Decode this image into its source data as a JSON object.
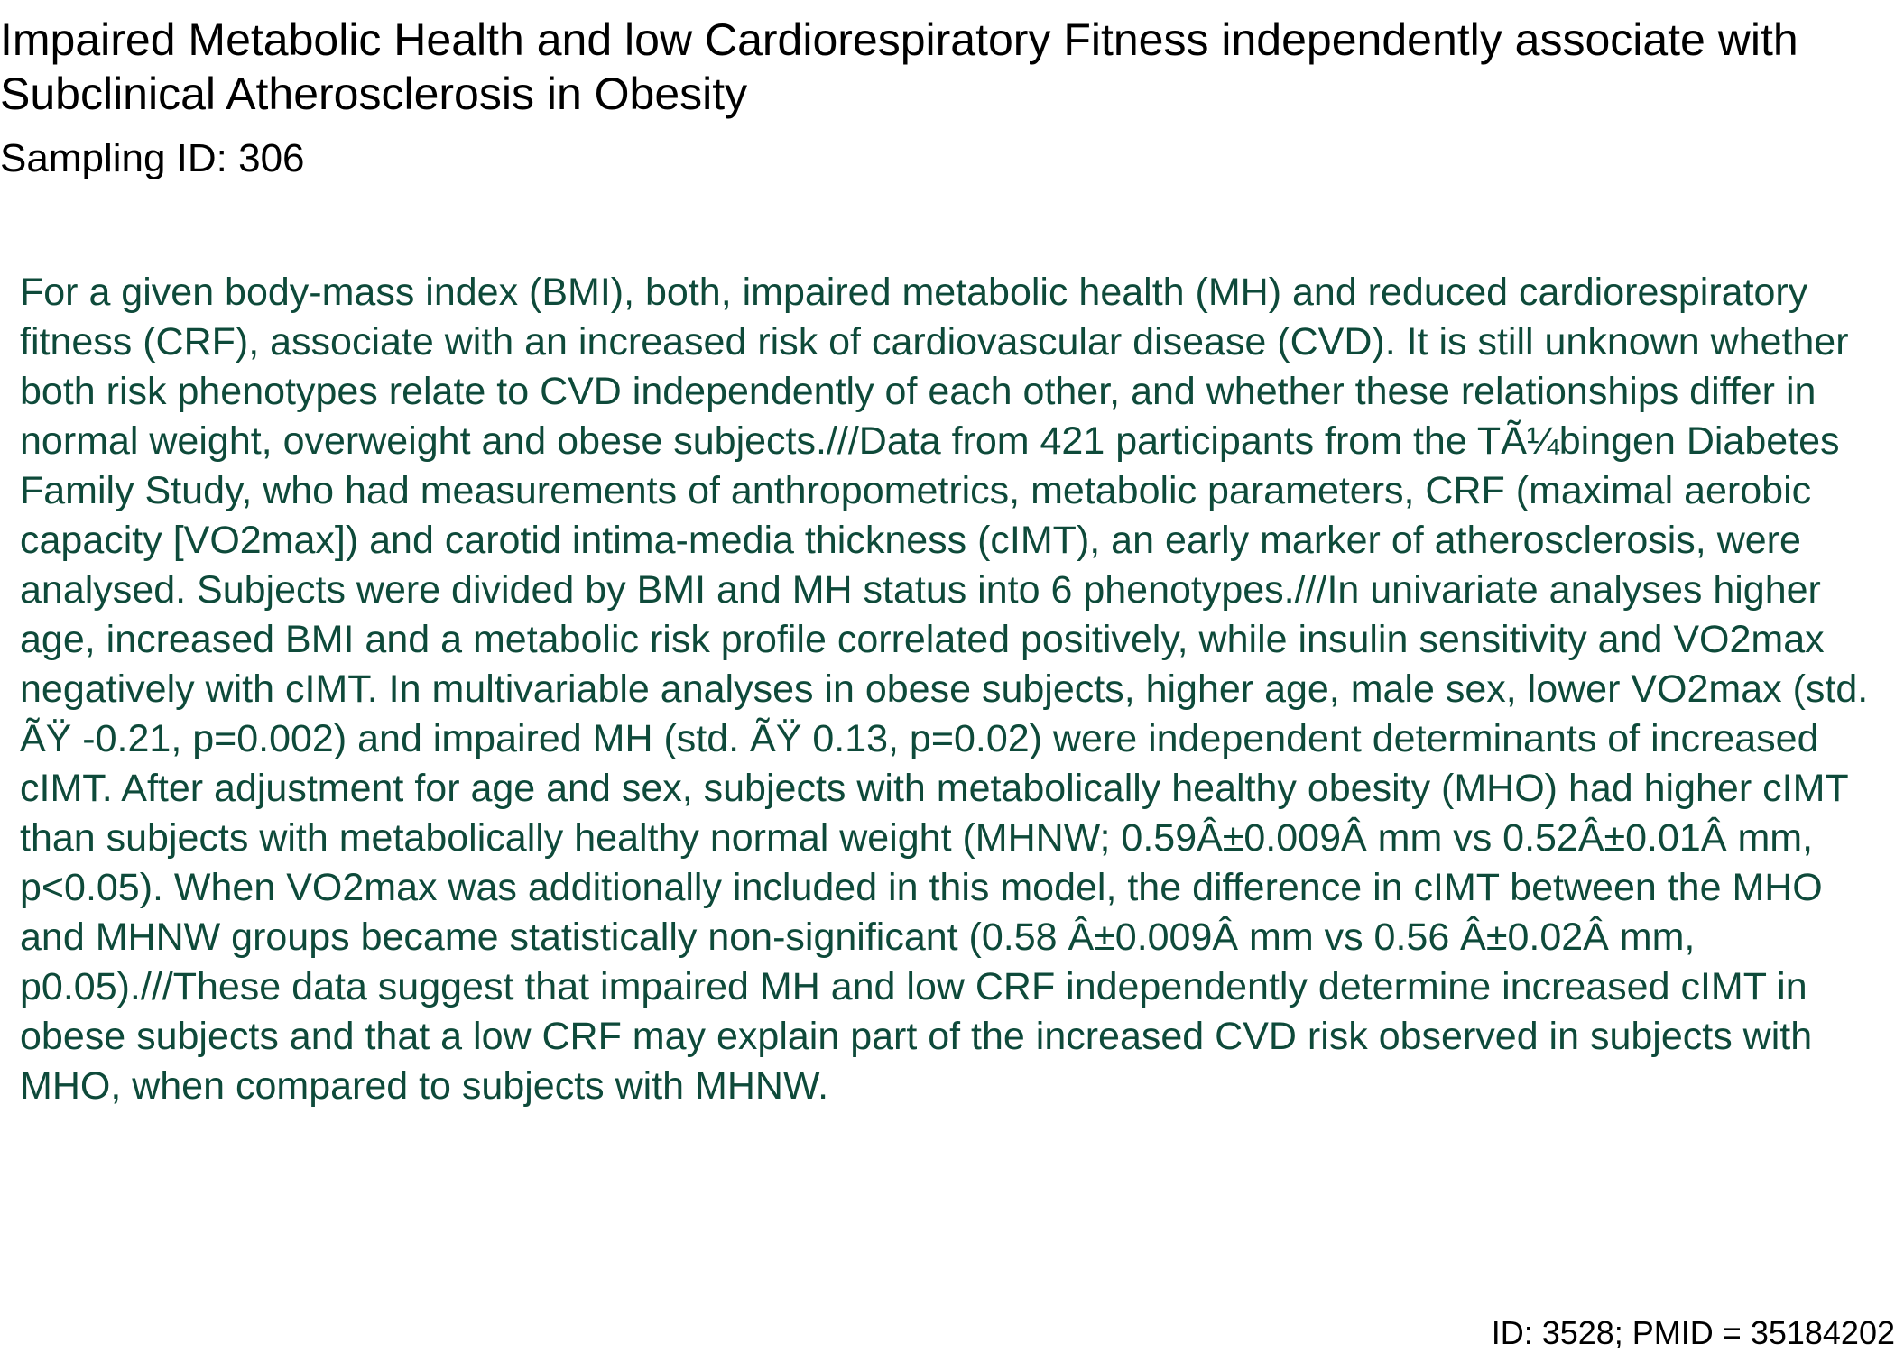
{
  "document": {
    "title": "Impaired Metabolic Health and low Cardiorespiratory Fitness independently associate with Subclinical Atherosclerosis in Obesity",
    "sampling_id": "Sampling ID: 306",
    "abstract": "For a given body-mass index (BMI), both, impaired metabolic health (MH) and reduced cardiorespiratory fitness (CRF), associate with an increased risk of cardiovascular disease (CVD). It is still unknown whether both risk phenotypes relate to CVD independently of each other, and whether these relationships differ in normal weight, overweight and obese subjects.///Data from 421 participants from the TÃ¼bingen Diabetes Family Study, who had measurements of anthropometrics, metabolic parameters, CRF (maximal aerobic capacity [VO2max]) and carotid intima-media thickness (cIMT), an early marker of atherosclerosis, were analysed. Subjects were divided by BMI and MH status into 6 phenotypes.///In univariate analyses higher age, increased BMI and a metabolic risk profile correlated positively, while insulin sensitivity and VO2max negatively with cIMT. In multivariable analyses in obese subjects, higher age, male sex, lower VO2max (std. ÃŸ -0.21, p=0.002) and impaired MH (std. ÃŸ 0.13, p=0.02) were independent determinants of increased cIMT. After adjustment for age and sex, subjects with metabolically healthy obesity (MHO) had higher cIMT than subjects with metabolically healthy normal weight (MHNW; 0.59Â±0.009Â mm vs 0.52Â±0.01Â mm, p<0.05). When VO2max was additionally included in this model, the difference in cIMT between the MHO and MHNW groups became statistically non-significant (0.58 Â±0.009Â mm vs 0.56 Â±0.02Â mm, p0.05).///These data suggest that impaired MH and low CRF independently determine increased cIMT in obese subjects and that a low CRF may explain part of the increased CVD risk observed in subjects with MHO, when compared to subjects with MHNW.",
    "footer": "ID: 3528; PMID = 35184202"
  },
  "colors": {
    "title_text": "#000000",
    "abstract_text": "#0e4a3a",
    "background": "#ffffff"
  }
}
